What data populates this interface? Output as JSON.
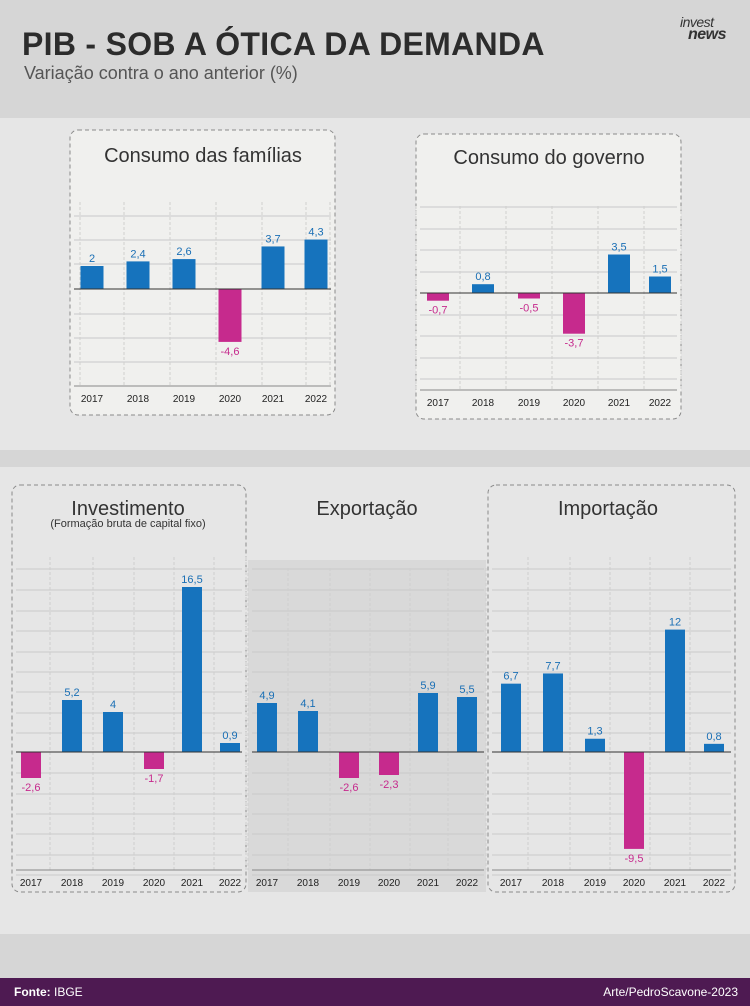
{
  "header": {
    "title": "PIB - SOB A ÓTICA DA DEMANDA",
    "subtitle": "Variação contra o ano anterior (%)",
    "logo_top": "invest",
    "logo_bottom": "news"
  },
  "footer": {
    "source_label": "Fonte:",
    "source_value": "IBGE",
    "credit": "Arte/PedroScavone-2023"
  },
  "colors": {
    "positive": "#1673bd",
    "negative": "#c62a8d",
    "positive_label": "#1a6fb5",
    "negative_label": "#c62a8d"
  },
  "chart_data": [
    {
      "type": "bar",
      "title": "Consumo das famílias",
      "categories": [
        "2017",
        "2018",
        "2019",
        "2020",
        "2021",
        "2022"
      ],
      "values": [
        2,
        2.4,
        2.6,
        -4.6,
        3.7,
        4.3
      ],
      "value_labels": [
        "2",
        "2,4",
        "2,6",
        "-4,6",
        "3,7",
        "4,3"
      ],
      "grid": true
    },
    {
      "type": "bar",
      "title": "Consumo do governo",
      "categories": [
        "2017",
        "2018",
        "2019",
        "2020",
        "2021",
        "2022"
      ],
      "values": [
        -0.7,
        0.8,
        -0.5,
        -3.7,
        3.5,
        1.5
      ],
      "value_labels": [
        "-0,7",
        "0,8",
        "-0,5",
        "-3,7",
        "3,5",
        "1,5"
      ],
      "grid": true
    },
    {
      "type": "bar",
      "title": "Investimento",
      "subtitle": "(Formação bruta de capital fixo)",
      "categories": [
        "2017",
        "2018",
        "2019",
        "2020",
        "2021",
        "2022"
      ],
      "values": [
        -2.6,
        5.2,
        4,
        -1.7,
        16.5,
        0.9
      ],
      "value_labels": [
        "-2,6",
        "5,2",
        "4",
        "-1,7",
        "16,5",
        "0,9"
      ],
      "grid": true
    },
    {
      "type": "bar",
      "title": "Exportação",
      "categories": [
        "2017",
        "2018",
        "2019",
        "2020",
        "2021",
        "2022"
      ],
      "values": [
        4.9,
        4.1,
        -2.6,
        -2.3,
        5.9,
        5.5
      ],
      "value_labels": [
        "4,9",
        "4,1",
        "-2,6",
        "-2,3",
        "5,9",
        "5,5"
      ],
      "grid": true
    },
    {
      "type": "bar",
      "title": "Importação",
      "categories": [
        "2017",
        "2018",
        "2019",
        "2020",
        "2021",
        "2022"
      ],
      "values": [
        6.7,
        7.7,
        1.3,
        -9.5,
        12,
        0.8
      ],
      "value_labels": [
        "6,7",
        "7,7",
        "1,3",
        "-9,5",
        "12",
        "0,8"
      ],
      "grid": true
    }
  ]
}
